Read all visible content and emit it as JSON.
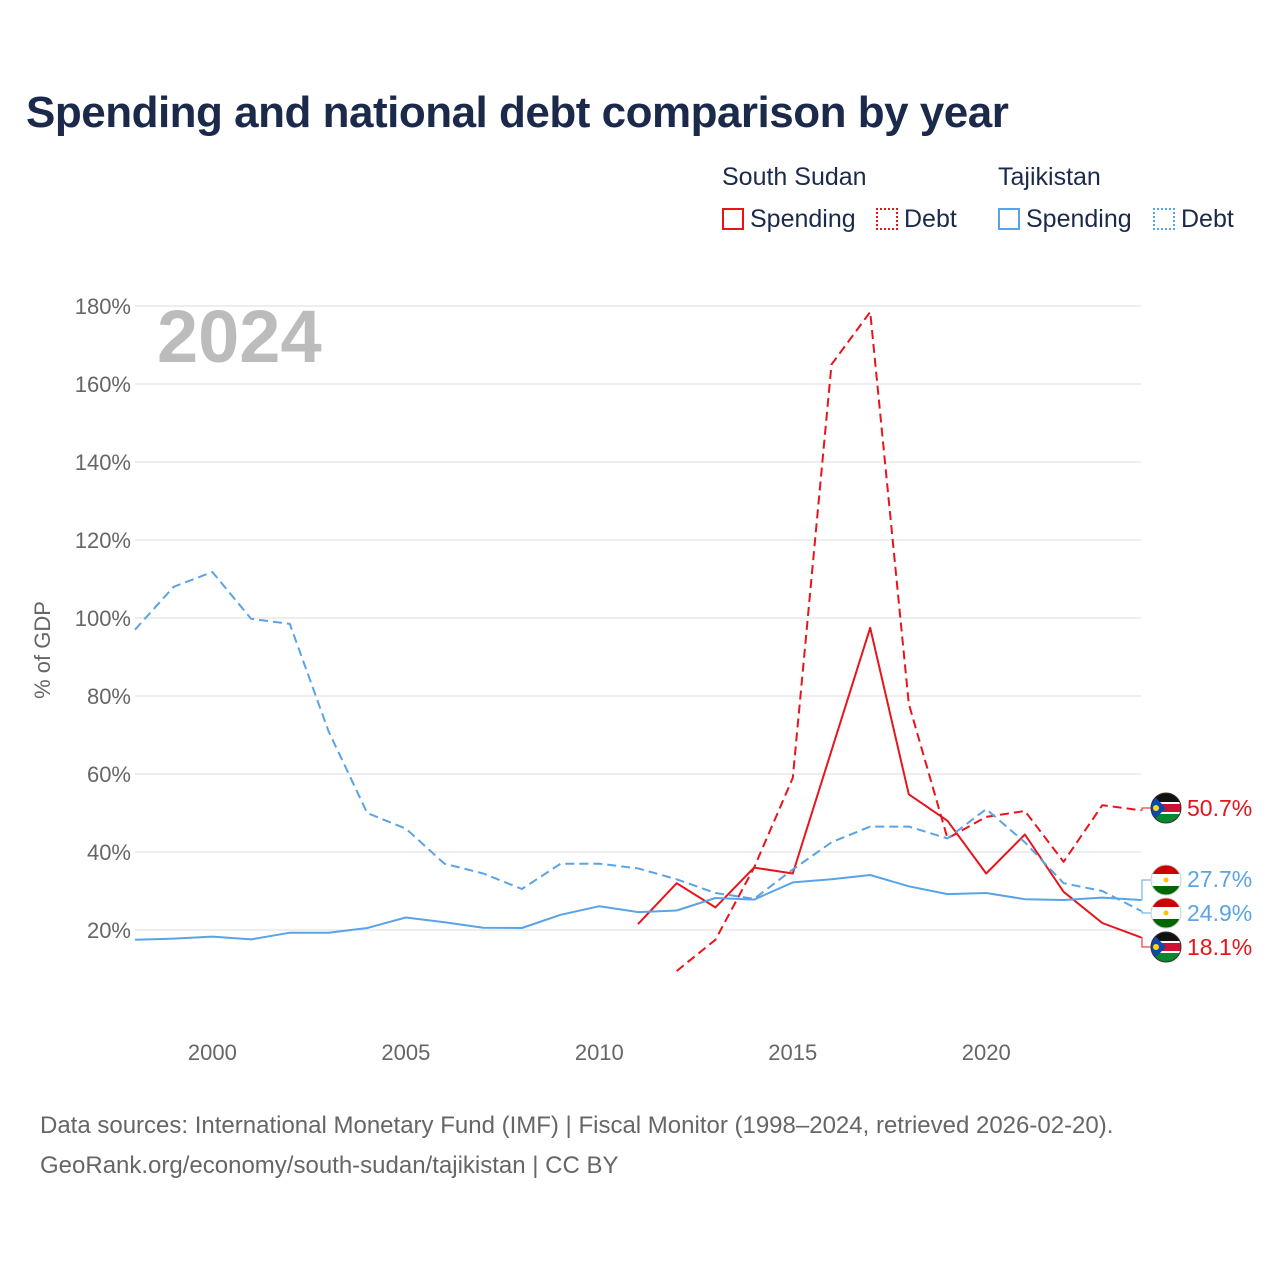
{
  "title": "Spending and national debt comparison by year",
  "legend": {
    "groups": [
      {
        "name": "South Sudan",
        "items": [
          "Spending",
          "Debt"
        ]
      },
      {
        "name": "Tajikistan",
        "items": [
          "Spending",
          "Debt"
        ]
      }
    ]
  },
  "colors": {
    "south_sudan": "#e8141c",
    "tajikistan": "#5aa3e6",
    "grid": "#dddddd",
    "title": "#1b2a4a"
  },
  "chart_data": {
    "type": "line",
    "title": "Spending and national debt comparison by year",
    "year_display": "2024",
    "ylabel": "% of GDP",
    "xlabel": "",
    "xlim": [
      1998,
      2024
    ],
    "ylim": [
      0,
      180
    ],
    "yticks": [
      20,
      40,
      60,
      80,
      100,
      120,
      140,
      160,
      180
    ],
    "ytick_labels": [
      "20%",
      "40%",
      "60%",
      "80%",
      "100%",
      "120%",
      "140%",
      "160%",
      "180%"
    ],
    "xticks": [
      2000,
      2005,
      2010,
      2015,
      2020
    ],
    "xtick_labels": [
      "2000",
      "2005",
      "2010",
      "2015",
      "2020"
    ],
    "grid": true,
    "series": [
      {
        "name": "South Sudan Spending",
        "country": "South Sudan",
        "measure": "Spending",
        "style": "solid",
        "color": "#e8141c",
        "x": [
          2011,
          2012,
          2013,
          2014,
          2015,
          2016,
          2017,
          2018,
          2019,
          2020,
          2021,
          2022,
          2023,
          2024
        ],
        "values": [
          21.5,
          32.0,
          25.8,
          36.0,
          34.5,
          66.0,
          97.5,
          54.8,
          48.0,
          34.5,
          44.5,
          29.8,
          21.8,
          18.1
        ],
        "end_label": "18.1%"
      },
      {
        "name": "South Sudan Debt",
        "country": "South Sudan",
        "measure": "Debt",
        "style": "dashed",
        "color": "#e8141c",
        "x": [
          2012,
          2013,
          2014,
          2015,
          2016,
          2017,
          2018,
          2019,
          2020,
          2021,
          2022,
          2023,
          2024
        ],
        "values": [
          9.5,
          17.5,
          36.0,
          59.0,
          165.0,
          178.5,
          78.0,
          43.5,
          49.0,
          50.5,
          37.5,
          52.0,
          50.7
        ],
        "end_label": "50.7%"
      },
      {
        "name": "Tajikistan Spending",
        "country": "Tajikistan",
        "measure": "Spending",
        "style": "solid",
        "color": "#5aa3e6",
        "x": [
          1998,
          1999,
          2000,
          2001,
          2002,
          2003,
          2004,
          2005,
          2006,
          2007,
          2008,
          2009,
          2010,
          2011,
          2012,
          2013,
          2014,
          2015,
          2016,
          2017,
          2018,
          2019,
          2020,
          2021,
          2022,
          2023,
          2024
        ],
        "values": [
          17.5,
          17.8,
          18.3,
          17.6,
          19.3,
          19.3,
          20.5,
          23.2,
          22.0,
          20.6,
          20.5,
          23.9,
          26.1,
          24.6,
          25.0,
          28.2,
          27.8,
          32.2,
          33.0,
          34.1,
          31.2,
          29.2,
          29.5,
          27.9,
          27.7,
          28.3,
          27.7
        ],
        "end_label": "27.7%"
      },
      {
        "name": "Tajikistan Debt",
        "country": "Tajikistan",
        "measure": "Debt",
        "style": "dashed",
        "color": "#5aa3e6",
        "x": [
          1998,
          1999,
          2000,
          2001,
          2002,
          2003,
          2004,
          2005,
          2006,
          2007,
          2008,
          2009,
          2010,
          2011,
          2012,
          2013,
          2014,
          2015,
          2016,
          2017,
          2018,
          2019,
          2020,
          2021,
          2022,
          2023,
          2024
        ],
        "values": [
          97.0,
          108.0,
          111.8,
          99.8,
          98.5,
          71.0,
          50.0,
          46.0,
          37.0,
          34.5,
          30.5,
          37.0,
          37.0,
          35.8,
          33.0,
          29.5,
          28.0,
          35.5,
          42.5,
          46.5,
          46.5,
          43.5,
          51.0,
          42.5,
          32.0,
          30.0,
          24.9
        ],
        "end_label": "24.9%"
      }
    ]
  },
  "footer": {
    "line1": "Data sources: International Monetary Fund (IMF) | Fiscal Monitor (1998–2024, retrieved 2026-02-20).",
    "line2": "GeoRank.org/economy/south-sudan/tajikistan | CC BY"
  }
}
